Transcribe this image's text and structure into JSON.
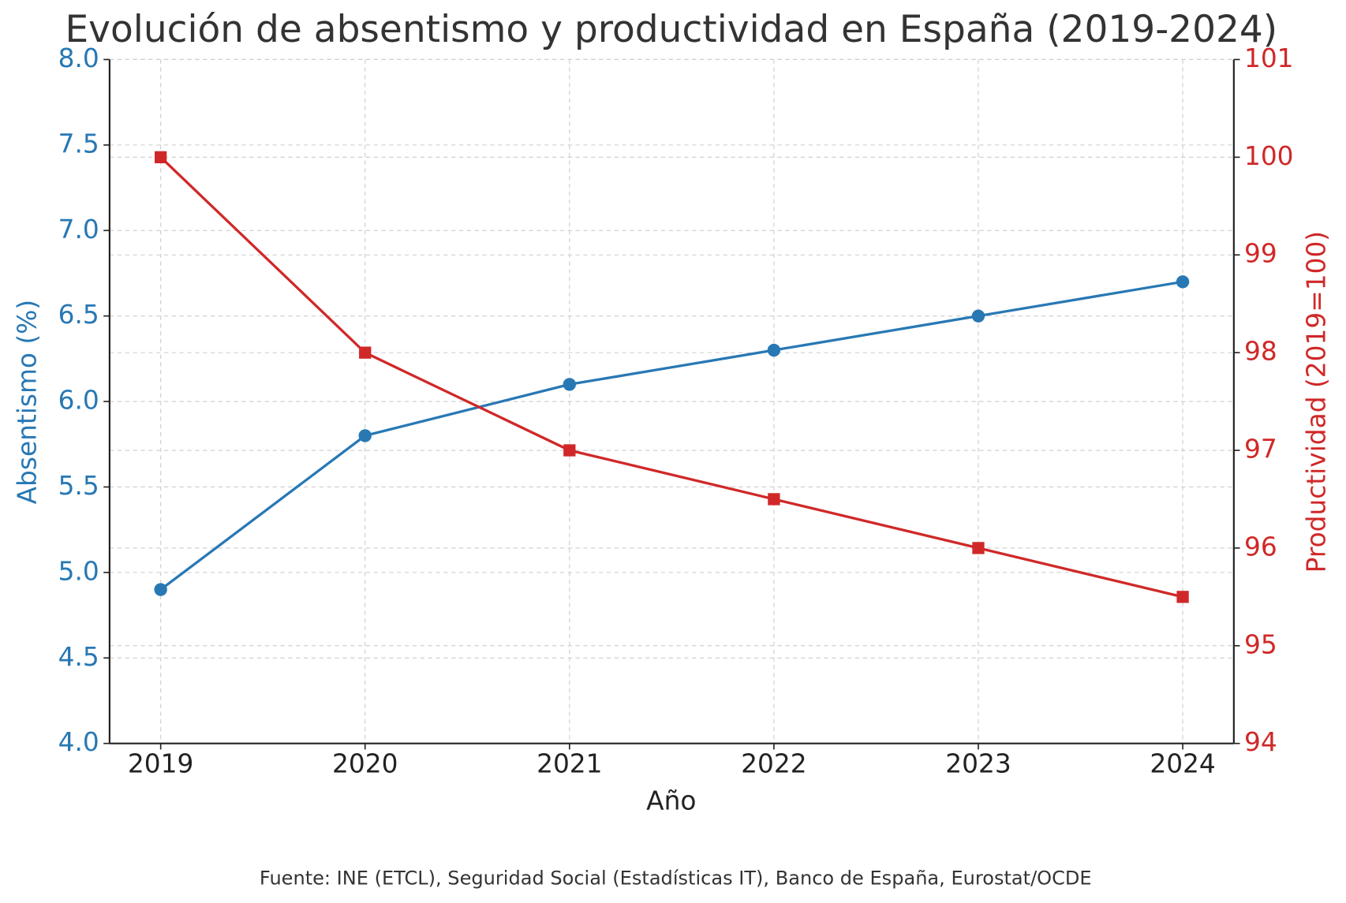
{
  "chart_data": {
    "type": "line",
    "title": "Evolución de absentismo y productividad en España (2019-2024)",
    "x_label": "Año",
    "y_label": "Absentismo (%)",
    "y2_label": "Productividad (2019=100)",
    "source": "Fuente: INE (ETCL), Seguridad Social (Estadísticas IT), Banco de España, Eurostat/OCDE",
    "x": [
      2019,
      2020,
      2021,
      2022,
      2023,
      2024
    ],
    "xlim": [
      2018.75,
      2024.25
    ],
    "xticks": [
      2019,
      2020,
      2021,
      2022,
      2023,
      2024
    ],
    "ylim": [
      4,
      8
    ],
    "yticks": [
      {
        "value": 4,
        "label": "4.0"
      },
      {
        "value": 4.5,
        "label": "4.5"
      },
      {
        "value": 5,
        "label": "5.0"
      },
      {
        "value": 5.5,
        "label": "5.5"
      },
      {
        "value": 6,
        "label": "6.0"
      },
      {
        "value": 6.5,
        "label": "6.5"
      },
      {
        "value": 7,
        "label": "7.0"
      },
      {
        "value": 7.5,
        "label": "7.5"
      },
      {
        "value": 8,
        "label": "8.0"
      }
    ],
    "y2lim": [
      94,
      101
    ],
    "y2ticks": [
      94,
      95,
      96,
      97,
      98,
      99,
      100,
      101
    ],
    "grid": true,
    "series": [
      {
        "name": "Absentismo (%)",
        "color": "#2878b4",
        "marker": "circle",
        "axis": "y",
        "values": [
          4.9,
          5.8,
          6.1,
          6.3,
          6.5,
          6.7
        ]
      },
      {
        "name": "Productividad (2019=100)",
        "color": "#d02828",
        "marker": "square",
        "axis": "y2",
        "values": [
          100,
          98,
          97,
          96.5,
          96,
          95.5
        ]
      }
    ]
  }
}
